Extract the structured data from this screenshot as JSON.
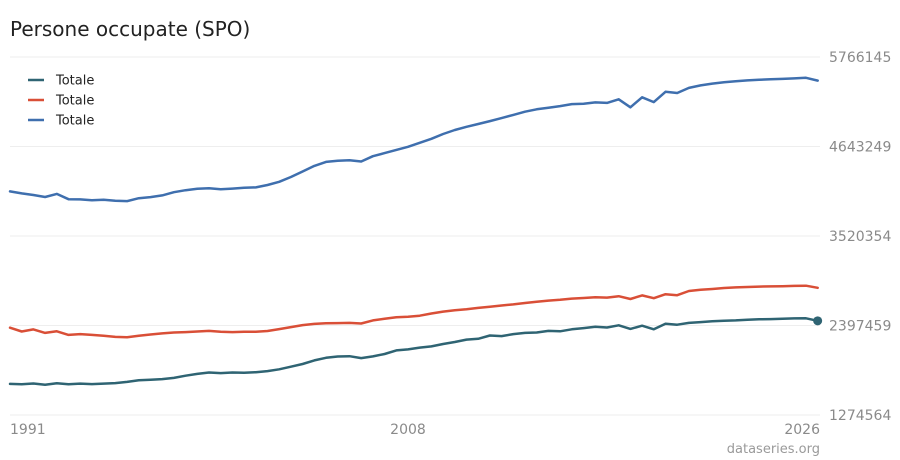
{
  "chart_data": {
    "type": "line",
    "title": "Persone occupate (SPO)",
    "source": "dataseries.org",
    "x_ticks": [
      "1991",
      "2008",
      "2026"
    ],
    "y_ticks": [
      1274564,
      2397459,
      3520354,
      4643249,
      5766145
    ],
    "y_tick_labels": [
      "1274564",
      "2397459",
      "3520354",
      "4643249",
      "5766145"
    ],
    "ylim": [
      1274564,
      5766145
    ],
    "xlim": [
      1991,
      2025.6
    ],
    "grid": true,
    "legend_position": "top-left",
    "x": [
      1991.0,
      1991.5,
      1992.0,
      1992.5,
      1993.0,
      1993.5,
      1994.0,
      1994.5,
      1995.0,
      1995.5,
      1996.0,
      1996.5,
      1997.0,
      1997.5,
      1998.0,
      1998.5,
      1999.0,
      1999.5,
      2000.0,
      2000.5,
      2001.0,
      2001.5,
      2002.0,
      2002.5,
      2003.0,
      2003.5,
      2004.0,
      2004.5,
      2005.0,
      2005.5,
      2006.0,
      2006.5,
      2007.0,
      2007.5,
      2008.0,
      2008.5,
      2009.0,
      2009.5,
      2010.0,
      2010.5,
      2011.0,
      2011.5,
      2012.0,
      2012.5,
      2013.0,
      2013.5,
      2014.0,
      2014.5,
      2015.0,
      2015.5,
      2016.0,
      2016.5,
      2017.0,
      2017.5,
      2018.0,
      2018.5,
      2019.0,
      2019.5,
      2020.0,
      2020.5,
      2021.0,
      2021.5,
      2022.0,
      2022.5,
      2023.0,
      2023.5,
      2024.0,
      2024.5,
      2025.0,
      2025.5
    ],
    "series": [
      {
        "name": "Totale",
        "color": "#2f6473",
        "values": [
          1665000,
          1660000,
          1670000,
          1655000,
          1672000,
          1660000,
          1668000,
          1662000,
          1668000,
          1675000,
          1690000,
          1710000,
          1718000,
          1725000,
          1740000,
          1768000,
          1790000,
          1808000,
          1800000,
          1808000,
          1805000,
          1812000,
          1825000,
          1848000,
          1880000,
          1915000,
          1960000,
          1992000,
          2008000,
          2012000,
          1988000,
          2010000,
          2040000,
          2085000,
          2098000,
          2120000,
          2135000,
          2165000,
          2190000,
          2220000,
          2230000,
          2272000,
          2265000,
          2290000,
          2305000,
          2310000,
          2330000,
          2325000,
          2350000,
          2365000,
          2382000,
          2372000,
          2400000,
          2355000,
          2395000,
          2350000,
          2420000,
          2408000,
          2430000,
          2440000,
          2450000,
          2458000,
          2462000,
          2470000,
          2475000,
          2478000,
          2482000,
          2486000,
          2488000,
          2456000
        ]
      },
      {
        "name": "Totale",
        "color": "#d94f37",
        "values": [
          2370000,
          2322000,
          2348000,
          2305000,
          2325000,
          2280000,
          2290000,
          2280000,
          2268000,
          2255000,
          2250000,
          2268000,
          2285000,
          2298000,
          2310000,
          2315000,
          2322000,
          2330000,
          2318000,
          2315000,
          2320000,
          2318000,
          2328000,
          2352000,
          2378000,
          2402000,
          2418000,
          2426000,
          2428000,
          2430000,
          2422000,
          2462000,
          2482000,
          2502000,
          2508000,
          2520000,
          2548000,
          2572000,
          2590000,
          2602000,
          2618000,
          2632000,
          2648000,
          2662000,
          2680000,
          2695000,
          2710000,
          2720000,
          2735000,
          2742000,
          2752000,
          2748000,
          2765000,
          2730000,
          2775000,
          2740000,
          2790000,
          2778000,
          2830000,
          2845000,
          2855000,
          2868000,
          2875000,
          2880000,
          2885000,
          2888000,
          2891000,
          2894000,
          2897000,
          2870000
        ]
      },
      {
        "name": "Totale",
        "color": "#3f6fae",
        "values": [
          4080000,
          4055000,
          4035000,
          4010000,
          4048000,
          3982000,
          3980000,
          3968000,
          3975000,
          3962000,
          3958000,
          3995000,
          4008000,
          4030000,
          4070000,
          4095000,
          4112000,
          4120000,
          4108000,
          4115000,
          4125000,
          4130000,
          4160000,
          4200000,
          4260000,
          4330000,
          4400000,
          4450000,
          4465000,
          4470000,
          4455000,
          4522000,
          4560000,
          4600000,
          4640000,
          4690000,
          4740000,
          4800000,
          4850000,
          4890000,
          4925000,
          4962000,
          5000000,
          5040000,
          5080000,
          5110000,
          5130000,
          5150000,
          5175000,
          5180000,
          5196000,
          5190000,
          5235000,
          5135000,
          5260000,
          5200000,
          5330000,
          5315000,
          5378000,
          5410000,
          5432000,
          5450000,
          5462000,
          5472000,
          5480000,
          5486000,
          5492000,
          5498000,
          5505000,
          5470000
        ]
      }
    ]
  }
}
